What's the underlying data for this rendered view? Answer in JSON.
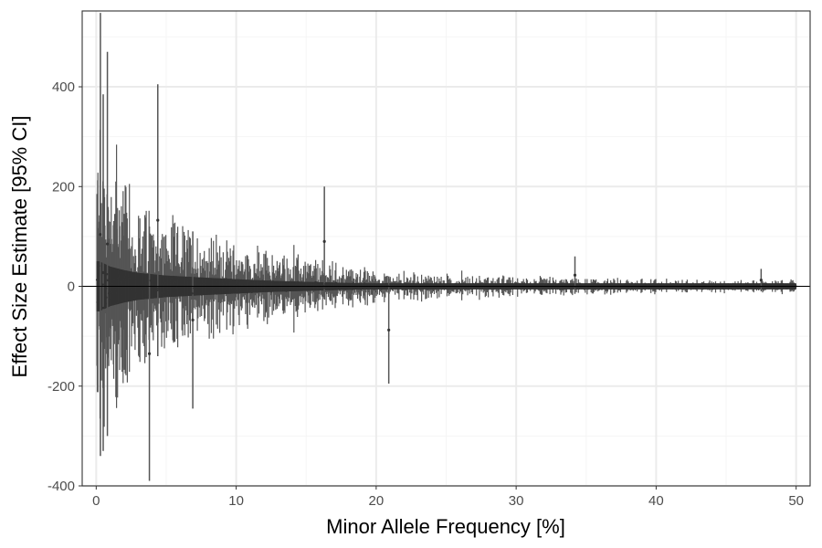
{
  "chart_data": {
    "type": "scatter",
    "title": "",
    "xlabel": "Minor Allele Frequency [%]",
    "ylabel": "Effect Size Estimate [95% CI]",
    "xlim": [
      -1,
      51
    ],
    "ylim": [
      -400,
      552
    ],
    "x_ticks": [
      0,
      10,
      20,
      30,
      40,
      50
    ],
    "y_ticks": [
      -400,
      -200,
      0,
      200,
      400
    ],
    "x_tick_labels": [
      "0",
      "10",
      "20",
      "30",
      "40",
      "50"
    ],
    "y_tick_labels": [
      "-400",
      "-200",
      "0",
      "200",
      "400"
    ],
    "reference_line_y": 0,
    "grid": true,
    "legend": "none",
    "series": [
      {
        "ci_halfwidth_envelope": {
          "x": [
            0.2,
            1,
            2,
            3,
            5,
            8,
            10,
            12,
            15,
            18,
            20,
            25,
            30,
            35,
            40,
            45,
            50
          ],
          "y": [
            280,
            220,
            180,
            150,
            120,
            95,
            80,
            65,
            50,
            38,
            30,
            22,
            18,
            15,
            13,
            12,
            11
          ]
        },
        "notable_intervals": [
          {
            "x": 0.3,
            "lower": -340,
            "upper": 548
          },
          {
            "x": 0.5,
            "lower": -330,
            "upper": 385
          },
          {
            "x": 0.8,
            "lower": -300,
            "upper": 470
          },
          {
            "x": 3.8,
            "lower": -390,
            "upper": 120
          },
          {
            "x": 4.4,
            "lower": -140,
            "upper": 405
          },
          {
            "x": 6.9,
            "lower": -245,
            "upper": 110
          },
          {
            "x": 16.3,
            "lower": -20,
            "upper": 200
          },
          {
            "x": 20.9,
            "lower": -195,
            "upper": 20
          },
          {
            "x": 34.2,
            "lower": -15,
            "upper": 60
          },
          {
            "x": 47.5,
            "lower": -10,
            "upper": 35
          }
        ]
      }
    ]
  },
  "colors": {
    "series": "#333333",
    "ci_line": "#555555",
    "grid_major": "#ebebeb",
    "grid_minor": "#f5f5f5",
    "panel_border": "#333333",
    "zero_line": "#000000",
    "tick_text": "#4d4d4d",
    "title_text": "#000000"
  }
}
